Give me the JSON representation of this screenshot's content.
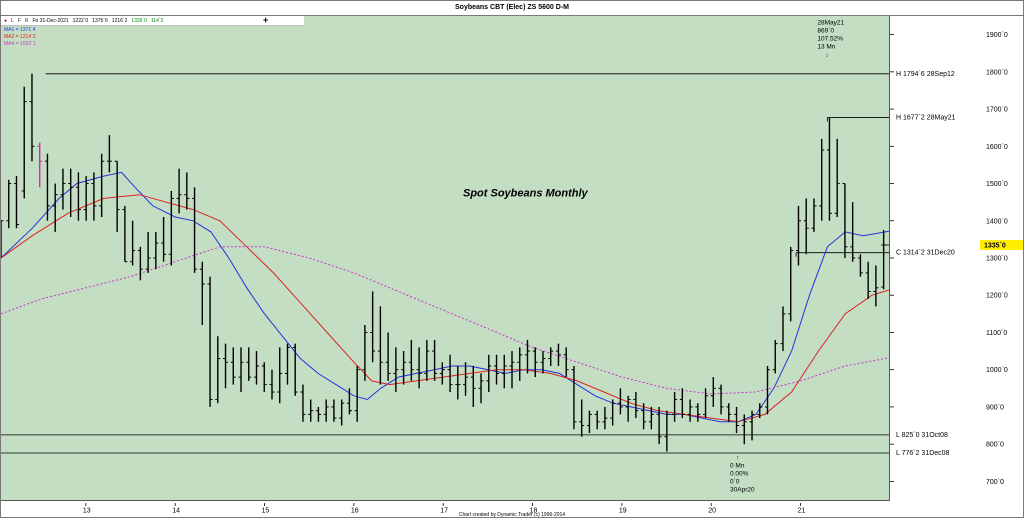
{
  "window": {
    "title": "Soybeans CBT (Elec) ZS 5600 D-M",
    "footer": "Chart created by Dynamic Trader  (c) 1996-2014"
  },
  "toolbar": {
    "icons": [
      "dot-icon",
      "L",
      "F",
      "R"
    ],
    "L": "L",
    "F": "F",
    "R": "R",
    "bar_info": {
      "date": "Fri 31-Dec-2021",
      "open": "1222`0",
      "high": "1375`6",
      "low": "1216`2",
      "close": "1335`0",
      "change": "114`2"
    },
    "add_symbol": "+"
  },
  "moving_averages": [
    {
      "label": "MA1 = 1371`4",
      "color": "#2233dd"
    },
    {
      "label": "MA2 = 1214`2",
      "color": "#dd2222"
    },
    {
      "label": "MA4 = 1032`1",
      "color": "#cc33cc"
    }
  ],
  "chart_data": {
    "type": "ohlc",
    "subtitle": "Spot Soybeans Monthly",
    "x_unit": "year",
    "x_ticks": [
      {
        "year": 2013,
        "label": "13"
      },
      {
        "year": 2014,
        "label": "14"
      },
      {
        "year": 2015,
        "label": "15"
      },
      {
        "year": 2016,
        "label": "16"
      },
      {
        "year": 2017,
        "label": "17"
      },
      {
        "year": 2018,
        "label": "18"
      },
      {
        "year": 2019,
        "label": "19"
      },
      {
        "year": 2020,
        "label": "20"
      },
      {
        "year": 2021,
        "label": "21"
      }
    ],
    "x_range": [
      2012.05,
      2021.99
    ],
    "y_range": [
      650,
      1950
    ],
    "y_ticks": [
      {
        "value": 700,
        "label": "700`0"
      },
      {
        "value": 800,
        "label": "800`0"
      },
      {
        "value": 900,
        "label": "900`0"
      },
      {
        "value": 1000,
        "label": "1000`0"
      },
      {
        "value": 1100,
        "label": "1100`0"
      },
      {
        "value": 1200,
        "label": "1200`0"
      },
      {
        "value": 1300,
        "label": "1300`0"
      },
      {
        "value": 1400,
        "label": "1400`0"
      },
      {
        "value": 1500,
        "label": "1500`0"
      },
      {
        "value": 1600,
        "label": "1600`0"
      },
      {
        "value": 1700,
        "label": "1700`0"
      },
      {
        "value": 1800,
        "label": "1800`0"
      },
      {
        "value": 1900,
        "label": "1900`0"
      }
    ],
    "bar_color": "#000000",
    "highlight_bar_color": "#e020c0",
    "bars": [
      [
        1310,
        1400,
        1300,
        1400
      ],
      [
        1400,
        1510,
        1380,
        1500
      ],
      [
        1500,
        1520,
        1380,
        1390
      ],
      [
        1480,
        1760,
        1460,
        1720
      ],
      [
        1720,
        1795,
        1560,
        1600
      ],
      [
        1600,
        1610,
        1490,
        1560
      ],
      [
        1560,
        1580,
        1400,
        1440
      ],
      [
        1440,
        1500,
        1370,
        1470
      ],
      [
        1470,
        1540,
        1430,
        1500
      ],
      [
        1500,
        1540,
        1410,
        1490
      ],
      [
        1490,
        1530,
        1400,
        1430
      ],
      [
        1430,
        1520,
        1400,
        1500
      ],
      [
        1500,
        1530,
        1400,
        1440
      ],
      [
        1440,
        1580,
        1410,
        1560
      ],
      [
        1560,
        1630,
        1530,
        1560
      ],
      [
        1560,
        1560,
        1370,
        1430
      ],
      [
        1430,
        1440,
        1290,
        1290
      ],
      [
        1290,
        1400,
        1280,
        1320
      ],
      [
        1320,
        1330,
        1240,
        1270
      ],
      [
        1270,
        1370,
        1260,
        1300
      ],
      [
        1300,
        1370,
        1270,
        1340
      ],
      [
        1340,
        1410,
        1290,
        1310
      ],
      [
        1310,
        1480,
        1280,
        1460
      ],
      [
        1460,
        1540,
        1420,
        1470
      ],
      [
        1470,
        1530,
        1430,
        1460
      ],
      [
        1460,
        1490,
        1260,
        1270
      ],
      [
        1270,
        1290,
        1120,
        1230
      ],
      [
        1230,
        1250,
        900,
        920
      ],
      [
        920,
        1090,
        910,
        1030
      ],
      [
        1030,
        1070,
        950,
        1020
      ],
      [
        1020,
        1060,
        960,
        980
      ],
      [
        980,
        1060,
        940,
        1020
      ],
      [
        1020,
        1060,
        970,
        980
      ],
      [
        980,
        1050,
        960,
        1010
      ],
      [
        1010,
        1020,
        940,
        960
      ],
      [
        960,
        1000,
        920,
        940
      ],
      [
        940,
        1060,
        910,
        990
      ],
      [
        990,
        1070,
        960,
        1060
      ],
      [
        1060,
        1070,
        930,
        940
      ],
      [
        940,
        960,
        860,
        880
      ],
      [
        880,
        920,
        860,
        890
      ],
      [
        890,
        900,
        860,
        880
      ],
      [
        880,
        920,
        860,
        900
      ],
      [
        900,
        920,
        860,
        870
      ],
      [
        870,
        920,
        850,
        910
      ],
      [
        910,
        950,
        880,
        890
      ],
      [
        890,
        1010,
        860,
        1000
      ],
      [
        1000,
        1120,
        970,
        1100
      ],
      [
        1100,
        1210,
        1020,
        1050
      ],
      [
        1050,
        1170,
        960,
        1020
      ],
      [
        1020,
        1100,
        970,
        990
      ],
      [
        990,
        1060,
        940,
        1000
      ],
      [
        1000,
        1050,
        960,
        1020
      ],
      [
        1020,
        1080,
        970,
        1000
      ],
      [
        1000,
        1060,
        950,
        990
      ],
      [
        990,
        1080,
        970,
        1050
      ],
      [
        1050,
        1080,
        970,
        990
      ],
      [
        990,
        1020,
        960,
        1000
      ],
      [
        1000,
        1040,
        940,
        960
      ],
      [
        960,
        1010,
        920,
        960
      ],
      [
        960,
        1020,
        930,
        980
      ],
      [
        980,
        1010,
        900,
        950
      ],
      [
        950,
        990,
        910,
        970
      ],
      [
        970,
        1040,
        940,
        1010
      ],
      [
        1010,
        1040,
        960,
        990
      ],
      [
        990,
        1040,
        950,
        1010
      ],
      [
        1010,
        1050,
        950,
        1020
      ],
      [
        1020,
        1060,
        970,
        1040
      ],
      [
        1040,
        1080,
        990,
        1050
      ],
      [
        1050,
        1060,
        980,
        1020
      ],
      [
        1020,
        1050,
        990,
        1030
      ],
      [
        1030,
        1060,
        1010,
        1050
      ],
      [
        1050,
        1070,
        1010,
        1040
      ],
      [
        1040,
        1060,
        980,
        1000
      ],
      [
        1000,
        1010,
        840,
        860
      ],
      [
        860,
        920,
        820,
        850
      ],
      [
        850,
        890,
        830,
        880
      ],
      [
        880,
        890,
        840,
        860
      ],
      [
        860,
        900,
        840,
        870
      ],
      [
        870,
        920,
        850,
        910
      ],
      [
        910,
        950,
        880,
        900
      ],
      [
        900,
        930,
        860,
        920
      ],
      [
        920,
        940,
        870,
        890
      ],
      [
        890,
        910,
        840,
        860
      ],
      [
        860,
        900,
        840,
        880
      ],
      [
        880,
        900,
        800,
        820
      ],
      [
        820,
        890,
        780,
        880
      ],
      [
        880,
        940,
        860,
        920
      ],
      [
        920,
        950,
        870,
        880
      ],
      [
        880,
        920,
        860,
        900
      ],
      [
        900,
        910,
        860,
        880
      ],
      [
        880,
        950,
        870,
        930
      ],
      [
        930,
        980,
        900,
        950
      ],
      [
        950,
        960,
        880,
        900
      ],
      [
        900,
        910,
        860,
        880
      ],
      [
        880,
        900,
        830,
        850
      ],
      [
        850,
        880,
        800,
        860
      ],
      [
        860,
        890,
        810,
        880
      ],
      [
        880,
        910,
        870,
        900
      ],
      [
        900,
        1010,
        880,
        1000
      ],
      [
        1000,
        1080,
        990,
        1070
      ],
      [
        1070,
        1170,
        1050,
        1150
      ],
      [
        1150,
        1330,
        1130,
        1320
      ],
      [
        1320,
        1440,
        1280,
        1400
      ],
      [
        1400,
        1460,
        1310,
        1380
      ],
      [
        1380,
        1460,
        1370,
        1440
      ],
      [
        1440,
        1620,
        1400,
        1590
      ],
      [
        1590,
        1677,
        1400,
        1420
      ],
      [
        1420,
        1620,
        1410,
        1500
      ],
      [
        1500,
        1500,
        1300,
        1330
      ],
      [
        1330,
        1450,
        1290,
        1300
      ],
      [
        1300,
        1310,
        1250,
        1260
      ],
      [
        1260,
        1290,
        1190,
        1210
      ],
      [
        1210,
        1280,
        1170,
        1220
      ],
      [
        1222,
        1375,
        1216,
        1335
      ]
    ],
    "highlight_index": 5,
    "overlays": [
      {
        "name": "MA1",
        "color": "#2233dd",
        "style": "solid",
        "points": [
          [
            2012.05,
            1300
          ],
          [
            2012.4,
            1380
          ],
          [
            2012.7,
            1460
          ],
          [
            2012.9,
            1500
          ],
          [
            2013.2,
            1520
          ],
          [
            2013.4,
            1530
          ],
          [
            2013.55,
            1490
          ],
          [
            2013.75,
            1440
          ],
          [
            2014.0,
            1410
          ],
          [
            2014.2,
            1400
          ],
          [
            2014.4,
            1370
          ],
          [
            2014.6,
            1300
          ],
          [
            2014.8,
            1220
          ],
          [
            2015.0,
            1150
          ],
          [
            2015.2,
            1090
          ],
          [
            2015.4,
            1030
          ],
          [
            2015.6,
            990
          ],
          [
            2015.8,
            960
          ],
          [
            2016.0,
            930
          ],
          [
            2016.15,
            920
          ],
          [
            2016.3,
            950
          ],
          [
            2016.5,
            980
          ],
          [
            2016.7,
            990
          ],
          [
            2016.9,
            1000
          ],
          [
            2017.1,
            1010
          ],
          [
            2017.3,
            1010
          ],
          [
            2017.5,
            1000
          ],
          [
            2017.7,
            990
          ],
          [
            2017.9,
            1000
          ],
          [
            2018.1,
            1000
          ],
          [
            2018.3,
            990
          ],
          [
            2018.5,
            960
          ],
          [
            2018.7,
            930
          ],
          [
            2018.9,
            910
          ],
          [
            2019.1,
            900
          ],
          [
            2019.3,
            890
          ],
          [
            2019.5,
            880
          ],
          [
            2019.7,
            880
          ],
          [
            2019.9,
            870
          ],
          [
            2020.1,
            860
          ],
          [
            2020.3,
            860
          ],
          [
            2020.5,
            880
          ],
          [
            2020.7,
            950
          ],
          [
            2020.9,
            1050
          ],
          [
            2021.1,
            1200
          ],
          [
            2021.3,
            1330
          ],
          [
            2021.5,
            1370
          ],
          [
            2021.7,
            1360
          ],
          [
            2021.99,
            1372
          ]
        ]
      },
      {
        "name": "MA2",
        "color": "#dd2222",
        "style": "solid",
        "points": [
          [
            2012.05,
            1300
          ],
          [
            2012.4,
            1360
          ],
          [
            2012.8,
            1420
          ],
          [
            2013.2,
            1460
          ],
          [
            2013.6,
            1470
          ],
          [
            2013.9,
            1450
          ],
          [
            2014.2,
            1430
          ],
          [
            2014.5,
            1400
          ],
          [
            2014.8,
            1330
          ],
          [
            2015.1,
            1260
          ],
          [
            2015.4,
            1180
          ],
          [
            2015.7,
            1100
          ],
          [
            2016.0,
            1020
          ],
          [
            2016.2,
            970
          ],
          [
            2016.4,
            960
          ],
          [
            2016.7,
            970
          ],
          [
            2017.0,
            980
          ],
          [
            2017.3,
            990
          ],
          [
            2017.6,
            1000
          ],
          [
            2017.9,
            1000
          ],
          [
            2018.2,
            990
          ],
          [
            2018.5,
            970
          ],
          [
            2018.8,
            940
          ],
          [
            2019.1,
            910
          ],
          [
            2019.4,
            890
          ],
          [
            2019.7,
            880
          ],
          [
            2020.0,
            870
          ],
          [
            2020.3,
            860
          ],
          [
            2020.6,
            880
          ],
          [
            2020.9,
            940
          ],
          [
            2021.2,
            1050
          ],
          [
            2021.5,
            1150
          ],
          [
            2021.8,
            1200
          ],
          [
            2021.99,
            1214
          ]
        ]
      },
      {
        "name": "MA4",
        "color": "#cc33cc",
        "style": "dashed",
        "points": [
          [
            2012.05,
            1150
          ],
          [
            2012.5,
            1190
          ],
          [
            2013.0,
            1220
          ],
          [
            2013.5,
            1250
          ],
          [
            2014.0,
            1290
          ],
          [
            2014.5,
            1330
          ],
          [
            2015.0,
            1330
          ],
          [
            2015.5,
            1300
          ],
          [
            2016.0,
            1260
          ],
          [
            2016.5,
            1210
          ],
          [
            2017.0,
            1160
          ],
          [
            2017.5,
            1110
          ],
          [
            2018.0,
            1060
          ],
          [
            2018.5,
            1020
          ],
          [
            2019.0,
            980
          ],
          [
            2019.5,
            950
          ],
          [
            2020.0,
            935
          ],
          [
            2020.5,
            940
          ],
          [
            2021.0,
            970
          ],
          [
            2021.5,
            1010
          ],
          [
            2021.99,
            1032
          ]
        ]
      }
    ],
    "reference_lines": [
      {
        "value": 1794.75,
        "label": "H 1794`6 28Sep12",
        "x_start": 2012.55
      },
      {
        "value": 1677.25,
        "label": "H 1677`2 28May21",
        "x_start": 2021.3
      },
      {
        "value": 1314.25,
        "label": "C 1314`2 31Dec20",
        "x_start": 2020.95
      },
      {
        "value": 825,
        "label": "L 825`0 31Oct08",
        "x_start": 2012.05
      },
      {
        "value": 776.25,
        "label": "L 776`2 31Dec08",
        "x_start": 2012.05
      }
    ],
    "last_price": {
      "value": 1335,
      "label": "1335`0"
    },
    "annotations": [
      {
        "lines": [
          "28May21",
          "869`0",
          "107.52%",
          "13 Mn"
        ],
        "arrow": "↓",
        "x": 2021.3,
        "anchor_value": 1900
      },
      {
        "lines": [
          "0 Mn",
          "0.00%",
          "0`0",
          "30Apr20"
        ],
        "arrow": "↑",
        "x": 2020.3,
        "anchor_value": 780
      }
    ]
  }
}
